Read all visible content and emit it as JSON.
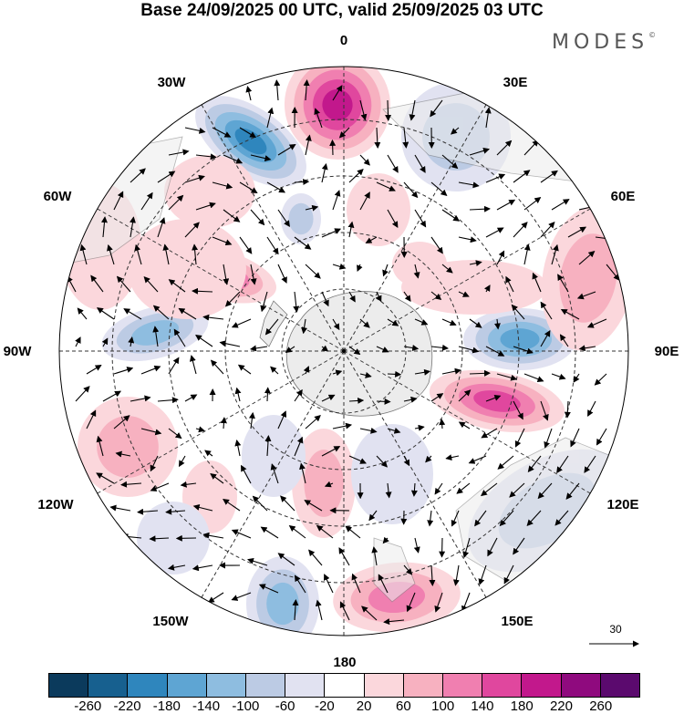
{
  "title": "Base 24/09/2025 00 UTC, valid 25/09/2025 03 UTC",
  "brand": "MODES",
  "brand_mark": "©",
  "longitude_labels": [
    "0",
    "30E",
    "60E",
    "90E",
    "120E",
    "150E",
    "180",
    "150W",
    "120W",
    "90W",
    "60W",
    "30W"
  ],
  "reference_vector": "30",
  "colorbar": {
    "ticks": [
      "-260",
      "-220",
      "-180",
      "-140",
      "-100",
      "-60",
      "-20",
      "20",
      "60",
      "100",
      "140",
      "180",
      "220",
      "260"
    ],
    "colors": [
      "#0b3a5c",
      "#17608f",
      "#2f86bd",
      "#5ea5d3",
      "#8ebde0",
      "#bccbe4",
      "#e1e2f1",
      "#ffffff",
      "#fbd7dc",
      "#f7b1c0",
      "#f07fb0",
      "#e0479e",
      "#c2188c",
      "#8f0a7e",
      "#5b0a6e"
    ]
  },
  "anomaly_colors": {
    "positive": [
      "#fbd7dc",
      "#f7b1c0",
      "#f07fb0",
      "#e0479e",
      "#c2188c"
    ],
    "negative": [
      "#e1e2f1",
      "#bccbe4",
      "#8ebde0",
      "#5ea5d3",
      "#2f86bd"
    ]
  }
}
